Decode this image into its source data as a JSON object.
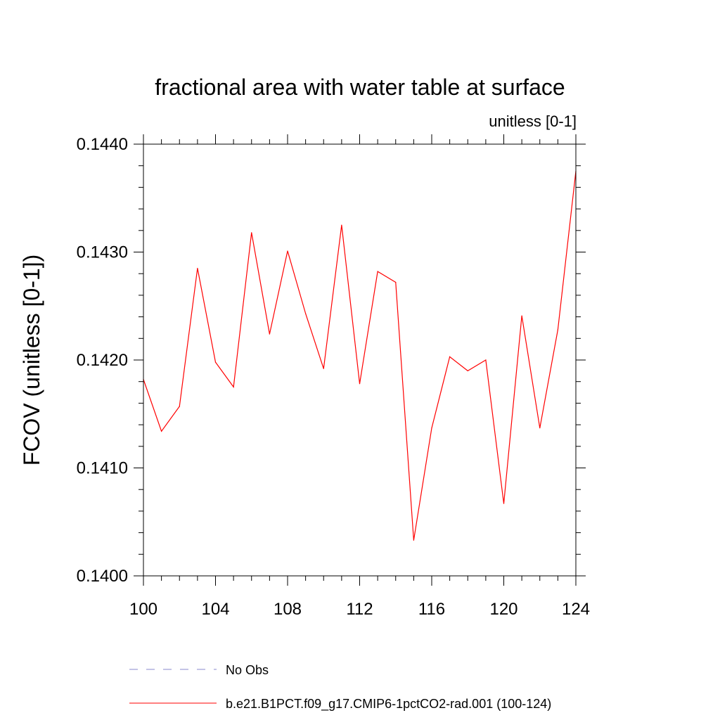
{
  "chart_data": {
    "type": "line",
    "title": "fractional area with water table at surface",
    "subtitle": "unitless [0-1]",
    "xlabel": "",
    "ylabel": "FCOV  (unitless [0-1])",
    "xlim": [
      100,
      124
    ],
    "ylim": [
      0.14,
      0.144
    ],
    "xticks": [
      100,
      104,
      108,
      112,
      116,
      120,
      124
    ],
    "yticks": [
      0.14,
      0.141,
      0.142,
      0.143,
      0.144
    ],
    "ytick_labels": [
      "0.1400",
      "0.1410",
      "0.1420",
      "0.1430",
      "0.1440"
    ],
    "grid": false,
    "legend_position": "bottom",
    "series": [
      {
        "name": "b.e21.B1PCT.f09_g17.CMIP6-1pctCO2-rad.001 (100-124)",
        "color": "#ff0000",
        "style": "solid",
        "x": [
          100,
          101,
          102,
          103,
          104,
          105,
          106,
          107,
          108,
          109,
          110,
          111,
          112,
          113,
          114,
          115,
          116,
          117,
          118,
          119,
          120,
          121,
          122,
          123,
          124
        ],
        "y": [
          0.14182,
          0.14134,
          0.14157,
          0.14285,
          0.14198,
          0.14175,
          0.14318,
          0.14224,
          0.14301,
          0.14243,
          0.14192,
          0.14325,
          0.14178,
          0.14282,
          0.14272,
          0.14033,
          0.14137,
          0.14203,
          0.1419,
          0.142,
          0.14067,
          0.14241,
          0.14137,
          0.14228,
          0.14375
        ]
      }
    ],
    "legend": [
      {
        "label": "No Obs",
        "color": "#8888cc",
        "style": "dashed"
      },
      {
        "label": "b.e21.B1PCT.f09_g17.CMIP6-1pctCO2-rad.001 (100-124)",
        "color": "#ff0000",
        "style": "solid"
      }
    ]
  }
}
